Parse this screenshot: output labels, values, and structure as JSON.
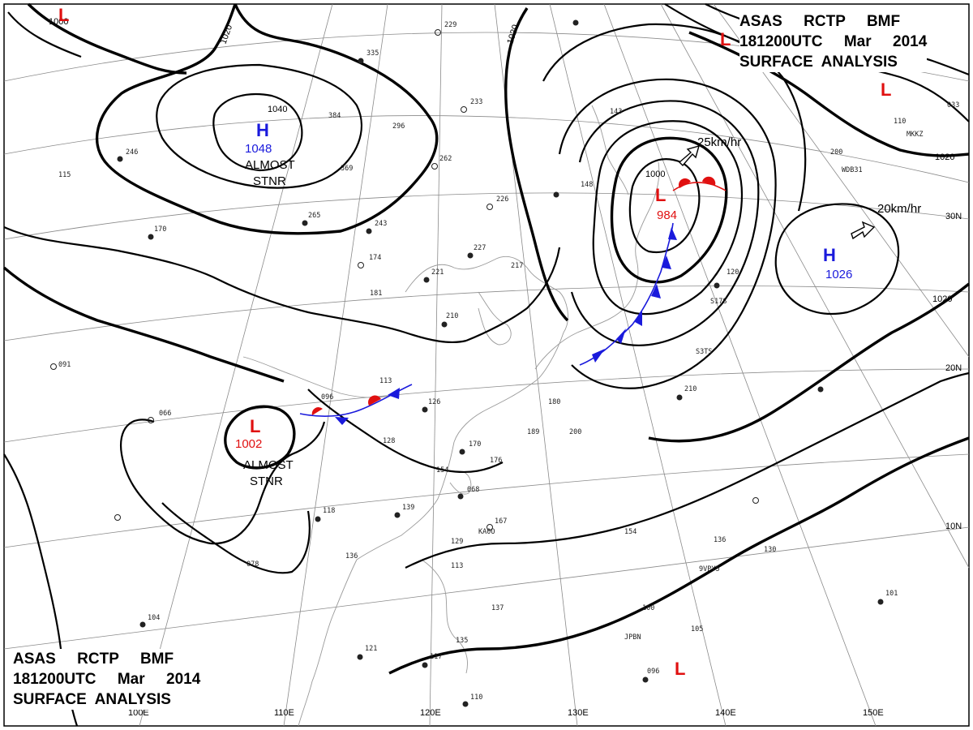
{
  "title_top": {
    "line1": "ASAS     RCTP     BMF",
    "line2": "181200UTC     Mar     2014",
    "line3": "SURFACE  ANALYSIS"
  },
  "title_bottom": {
    "line1": "ASAS     RCTP     BMF",
    "line2": "181200UTC     Mar     2014",
    "line3": "SURFACE  ANALYSIS"
  },
  "latitude_labels": [
    "30N",
    "20N",
    "10N"
  ],
  "longitude_labels": [
    "100E",
    "110E",
    "120E",
    "130E",
    "140E",
    "150E"
  ],
  "isobar_labels": [
    "1000",
    "1020",
    "1020",
    "1040",
    "1000",
    "1020",
    "1020"
  ],
  "pressure_centers": [
    {
      "type": "H",
      "value": "1048",
      "color": "#1a1adc"
    },
    {
      "type": "L",
      "value": "984",
      "color": "#e01010"
    },
    {
      "type": "H",
      "value": "1026",
      "color": "#1a1adc"
    },
    {
      "type": "L",
      "value": "1002",
      "color": "#e01010"
    },
    {
      "type": "L",
      "value": "",
      "color": "#e01010"
    },
    {
      "type": "L",
      "value": "",
      "color": "#e01010"
    },
    {
      "type": "L",
      "value": "",
      "color": "#e01010"
    },
    {
      "type": "L",
      "value": "",
      "color": "#e01010"
    }
  ],
  "annotations": {
    "stnr_north_1": "ALMOST",
    "stnr_north_2": "STNR",
    "stnr_south_1": "ALMOST",
    "stnr_south_2": "STNR",
    "motion_low": "25km/hr",
    "motion_high": "20km/hr"
  },
  "stations": [
    "229",
    "335",
    "233",
    "384",
    "296",
    "246",
    "369",
    "262",
    "226",
    "265",
    "243",
    "227",
    "174",
    "221",
    "217",
    "181",
    "210",
    "115",
    "170",
    "091",
    "066",
    "096",
    "113",
    "126",
    "128",
    "170",
    "154",
    "176",
    "180",
    "189",
    "200",
    "068",
    "167",
    "118",
    "139",
    "136",
    "129",
    "113",
    "078",
    "104",
    "121",
    "117",
    "110",
    "137",
    "135",
    "154",
    "136",
    "130",
    "100",
    "105",
    "096",
    "101",
    "210",
    "110",
    "033",
    "200",
    "120",
    "143",
    "148"
  ],
  "station_ids": [
    "WDB31",
    "MKKZ",
    "KA0O",
    "9VPY5",
    "JPBN",
    "S17S",
    "S3TS"
  ],
  "colors": {
    "warm_front": "#e01010",
    "cold_front": "#1a1adc",
    "high": "#1a1adc",
    "low": "#e01010"
  }
}
